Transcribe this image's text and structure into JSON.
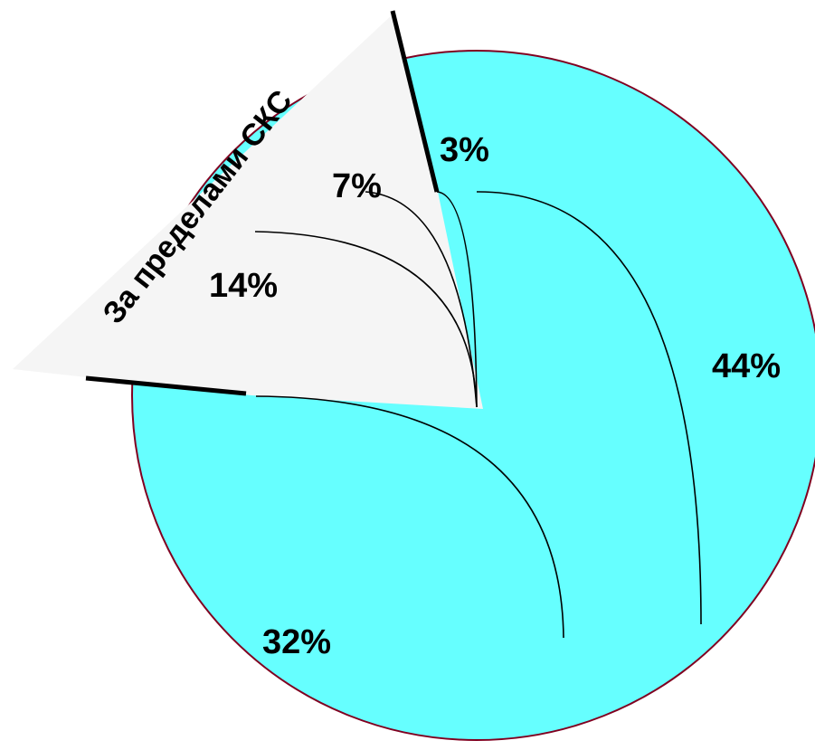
{
  "chart_data": {
    "type": "pie",
    "title": "",
    "callout_label": "За пределами СКС",
    "slices": [
      {
        "label": "44%",
        "value": 44,
        "group": "main"
      },
      {
        "label": "32%",
        "value": 32,
        "group": "main"
      },
      {
        "label": "14%",
        "value": 14,
        "group": "exploded"
      },
      {
        "label": "7%",
        "value": 7,
        "group": "exploded"
      },
      {
        "label": "3%",
        "value": 3,
        "group": "main"
      }
    ],
    "colors": {
      "main_fill": "#66ffff",
      "main_border": "#800020",
      "exploded_fill": "#f5f5f5",
      "leader_lines": "#000000",
      "separator_bars": "#000000"
    }
  }
}
